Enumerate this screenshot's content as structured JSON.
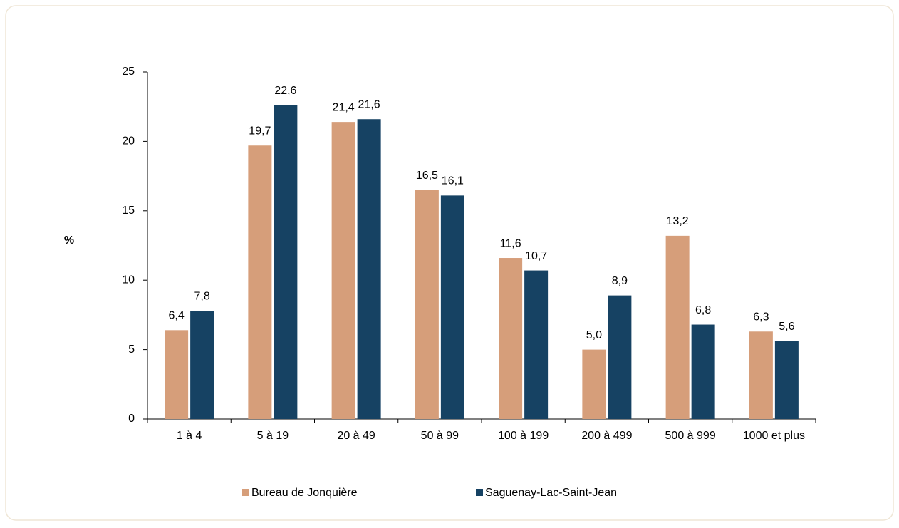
{
  "chart_data": {
    "type": "bar",
    "y_label": "%",
    "categories": [
      "1 à 4",
      "5 à 19",
      "20 à 49",
      "50 à 99",
      "100 à 199",
      "200 à 499",
      "500 à 999",
      "1000 et plus"
    ],
    "series": [
      {
        "name": "Bureau de Jonquière",
        "color": "#d69e7a",
        "values": [
          6.4,
          19.7,
          21.4,
          16.5,
          11.6,
          5.0,
          13.2,
          6.3
        ],
        "value_labels": [
          "6,4",
          "19,7",
          "21,4",
          "16,5",
          "11,6",
          "5,0",
          "13,2",
          "6,3"
        ]
      },
      {
        "name": "Saguenay-Lac-Saint-Jean",
        "color": "#164263",
        "values": [
          7.8,
          22.6,
          21.6,
          16.1,
          10.7,
          8.9,
          6.8,
          5.6
        ],
        "value_labels": [
          "7,8",
          "22,6",
          "21,6",
          "16,1",
          "10,7",
          "8,9",
          "6,8",
          "5,6"
        ]
      }
    ],
    "ylim": [
      0,
      25
    ],
    "yticks": [
      0,
      5,
      10,
      15,
      20,
      25
    ],
    "grid": false,
    "legend": "bottom"
  }
}
